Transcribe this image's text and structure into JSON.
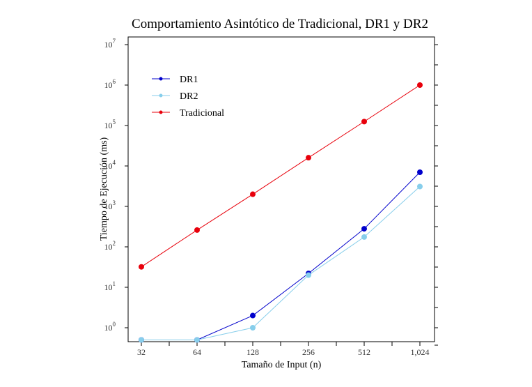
{
  "chart_data": {
    "type": "line",
    "title": "Comportamiento Asintótico de Tradicional, DR1 y DR2",
    "xlabel": "Tamaño de Input (n)",
    "ylabel": "Tiempo de Ejecución (ms)",
    "x_scale": "log2",
    "y_scale": "log10",
    "x": [
      32,
      64,
      128,
      256,
      512,
      1024
    ],
    "x_tick_labels": [
      "32",
      "64",
      "128",
      "256",
      "512",
      "1,024"
    ],
    "y_tick_labels": [
      {
        "base": "10",
        "exp": "0"
      },
      {
        "base": "10",
        "exp": "1"
      },
      {
        "base": "10",
        "exp": "2"
      },
      {
        "base": "10",
        "exp": "3"
      },
      {
        "base": "10",
        "exp": "4"
      },
      {
        "base": "10",
        "exp": "5"
      },
      {
        "base": "10",
        "exp": "6"
      },
      {
        "base": "10",
        "exp": "7"
      }
    ],
    "ylim": [
      0.5,
      15000000
    ],
    "grid": false,
    "legend_position": "top-left",
    "series": [
      {
        "name": "DR1",
        "color": "#0000cc",
        "values": [
          0.5,
          0.5,
          2,
          22,
          280,
          7000
        ]
      },
      {
        "name": "DR2",
        "color": "#87ceeb",
        "values": [
          0.5,
          0.5,
          1,
          20,
          175,
          3100
        ]
      },
      {
        "name": "Tradicional",
        "color": "#e8000b",
        "values": [
          32,
          260,
          2000,
          16000,
          125000,
          1000000
        ]
      }
    ]
  }
}
